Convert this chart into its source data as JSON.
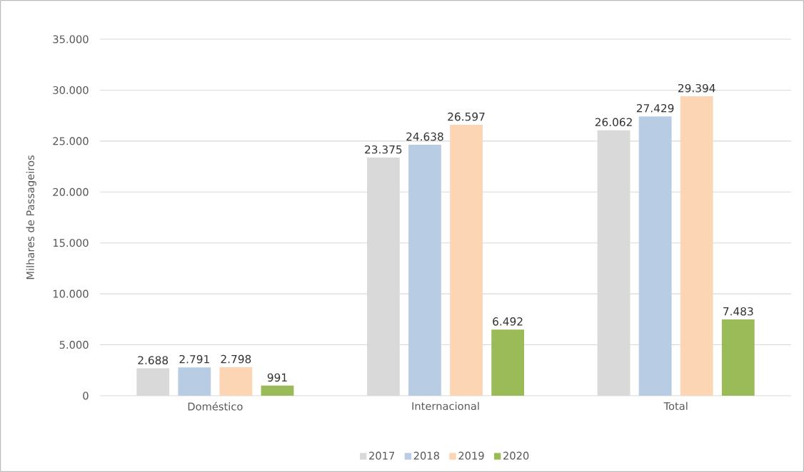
{
  "chart_data": {
    "type": "bar",
    "ylabel": "Milhares de Passageiros",
    "categories": [
      "Doméstico",
      "Internacional",
      "Total"
    ],
    "series": [
      {
        "name": "2017",
        "color": "#d9d9d9",
        "values": [
          2688,
          23375,
          26062
        ],
        "value_labels": [
          "2.688",
          "23.375",
          "26.062"
        ]
      },
      {
        "name": "2018",
        "color": "#b8cce4",
        "values": [
          2791,
          24638,
          27429
        ],
        "value_labels": [
          "2.791",
          "24.638",
          "27.429"
        ]
      },
      {
        "name": "2019",
        "color": "#fcd5b4",
        "values": [
          2798,
          26597,
          29394
        ],
        "value_labels": [
          "2.798",
          "26.597",
          "29.394"
        ]
      },
      {
        "name": "2020",
        "color": "#9bbb59",
        "values": [
          991,
          6492,
          7483
        ],
        "value_labels": [
          "991",
          "6.492",
          "7.483"
        ]
      }
    ],
    "ylim": [
      0,
      35000
    ],
    "yticks": [
      {
        "value": 0,
        "label": "0"
      },
      {
        "value": 5000,
        "label": "5.000"
      },
      {
        "value": 10000,
        "label": "10.000"
      },
      {
        "value": 15000,
        "label": "15.000"
      },
      {
        "value": 20000,
        "label": "20.000"
      },
      {
        "value": 25000,
        "label": "25.000"
      },
      {
        "value": 30000,
        "label": "30.000"
      },
      {
        "value": 35000,
        "label": "35.000"
      }
    ],
    "grid": "y",
    "legend": "bottom"
  }
}
